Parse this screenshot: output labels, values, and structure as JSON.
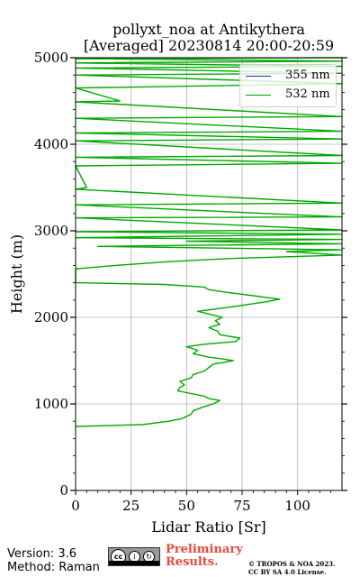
{
  "title": {
    "line1": "pollyxt_noa at Antikythera",
    "line2": "[Averaged] 20230814 20:00-20:59"
  },
  "footer": {
    "version": "Version: 3.6",
    "method": "Method: Raman",
    "license_badge": "cc by sa",
    "preliminary_line1": "Preliminary",
    "preliminary_line2": "Results.",
    "copyright_line1": "© TROPOS & NOA 2023.",
    "copyright_line2": "CC BY SA 4.0 License."
  },
  "colors": {
    "series_355": "#2020d0",
    "series_532": "#00a800",
    "preliminary": "#e8473d",
    "grid": "#b0b0b0"
  },
  "chart_data": {
    "type": "line",
    "title": "pollyxt_noa at Antikythera [Averaged] 20230814 20:00-20:59",
    "xlabel": "Lidar Ratio [Sr]",
    "ylabel": "Height (m)",
    "xlim": [
      0,
      120
    ],
    "ylim": [
      0,
      5000
    ],
    "xticks": [
      0,
      25,
      50,
      75,
      100
    ],
    "yticks": [
      0,
      1000,
      2000,
      3000,
      4000,
      5000
    ],
    "grid": true,
    "legend_position": "top-right",
    "series": [
      {
        "name": "355 nm",
        "points": []
      },
      {
        "name": "532 nm",
        "points": [
          [
            0,
            740
          ],
          [
            30,
            760
          ],
          [
            42,
            800
          ],
          [
            48,
            830
          ],
          [
            52,
            880
          ],
          [
            53,
            920
          ],
          [
            57,
            960
          ],
          [
            62,
            1000
          ],
          [
            65,
            1040
          ],
          [
            60,
            1060
          ],
          [
            58,
            1090
          ],
          [
            52,
            1120
          ],
          [
            46,
            1150
          ],
          [
            47,
            1190
          ],
          [
            49,
            1220
          ],
          [
            47,
            1260
          ],
          [
            52,
            1300
          ],
          [
            53,
            1340
          ],
          [
            58,
            1380
          ],
          [
            60,
            1420
          ],
          [
            62,
            1460
          ],
          [
            67,
            1480
          ],
          [
            71,
            1500
          ],
          [
            66,
            1520
          ],
          [
            60,
            1540
          ],
          [
            53,
            1580
          ],
          [
            55,
            1620
          ],
          [
            50,
            1660
          ],
          [
            58,
            1690
          ],
          [
            72,
            1720
          ],
          [
            74,
            1760
          ],
          [
            65,
            1800
          ],
          [
            64,
            1840
          ],
          [
            60,
            1880
          ],
          [
            65,
            1920
          ],
          [
            63,
            1960
          ],
          [
            66,
            2000
          ],
          [
            60,
            2040
          ],
          [
            55,
            2070
          ],
          [
            64,
            2100
          ],
          [
            70,
            2120
          ],
          [
            78,
            2150
          ],
          [
            86,
            2180
          ],
          [
            92,
            2210
          ],
          [
            86,
            2230
          ],
          [
            80,
            2250
          ],
          [
            74,
            2270
          ],
          [
            68,
            2290
          ],
          [
            60,
            2320
          ],
          [
            58,
            2350
          ],
          [
            40,
            2380
          ],
          [
            0,
            2400
          ],
          [
            0,
            2560
          ],
          [
            18,
            2600
          ],
          [
            40,
            2640
          ],
          [
            55,
            2660
          ],
          [
            70,
            2680
          ],
          [
            120,
            2720
          ],
          [
            95,
            2760
          ],
          [
            120,
            2780
          ],
          [
            10,
            2820
          ],
          [
            120,
            2850
          ],
          [
            50,
            2880
          ],
          [
            120,
            2900
          ],
          [
            0,
            2920
          ],
          [
            120,
            2960
          ],
          [
            0,
            2990
          ],
          [
            120,
            3010
          ],
          [
            0,
            3150
          ],
          [
            120,
            3160
          ],
          [
            0,
            3300
          ],
          [
            120,
            3320
          ],
          [
            0,
            3480
          ],
          [
            5,
            3500
          ],
          [
            0,
            3750
          ],
          [
            120,
            3780
          ],
          [
            0,
            3850
          ],
          [
            120,
            3870
          ],
          [
            0,
            4040
          ],
          [
            120,
            4060
          ],
          [
            0,
            4130
          ],
          [
            120,
            4150
          ],
          [
            0,
            4300
          ],
          [
            120,
            4320
          ],
          [
            0,
            4490
          ],
          [
            20,
            4500
          ],
          [
            0,
            4650
          ],
          [
            120,
            4700
          ],
          [
            0,
            4800
          ],
          [
            120,
            4820
          ],
          [
            0,
            4880
          ],
          [
            120,
            4900
          ],
          [
            0,
            4940
          ],
          [
            120,
            4960
          ],
          [
            0,
            4990
          ],
          [
            120,
            5000
          ]
        ]
      }
    ]
  }
}
